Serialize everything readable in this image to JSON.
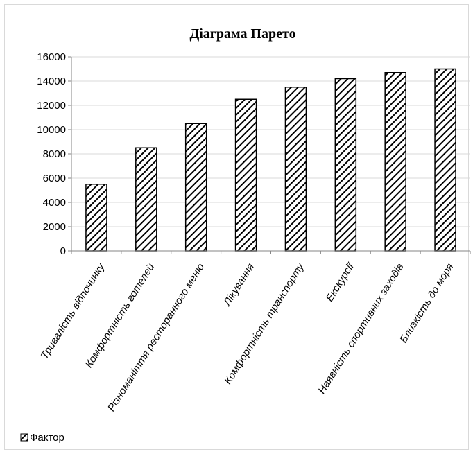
{
  "chart_data": {
    "type": "bar",
    "title": "Діаграма Парето",
    "categories": [
      "Тривалість відпочинку",
      "Комфортність готелей",
      "Різноманіття ресторанного меню",
      "Лікування",
      "Комфортність транспорту",
      "Екскурсії",
      "Наявність спортивних заходів",
      "Близкість до  моря"
    ],
    "series": [
      {
        "name": "Фактор",
        "values": [
          5500,
          8500,
          10500,
          12500,
          13500,
          14200,
          14700,
          15000
        ]
      }
    ],
    "ylim": [
      0,
      16000
    ],
    "yticks": [
      "0",
      "2000",
      "4000",
      "6000",
      "8000",
      "10000",
      "12000",
      "14000",
      "16000"
    ],
    "grid": true,
    "legend_position": "bottom-left",
    "bar_fill": "diagonal-hatch",
    "colors": {
      "bar_stroke": "#000000",
      "hatch": "#000000",
      "grid": "#d9d9d9",
      "axis": "#868686"
    }
  }
}
